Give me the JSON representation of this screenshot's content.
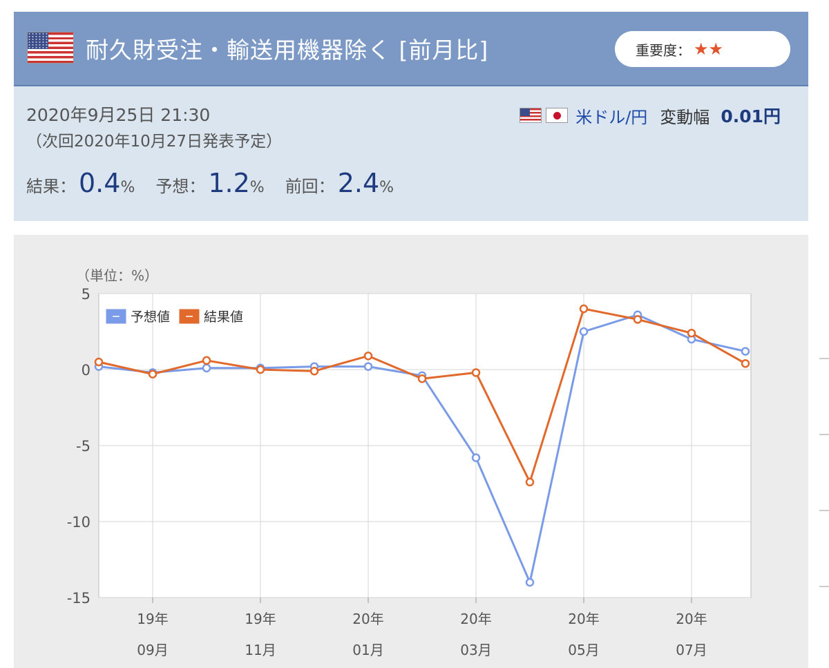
{
  "header": {
    "title": "耐久財受注・輸送用機器除く [前月比]",
    "importance_label": "重要度：",
    "importance_stars": "★★",
    "flag_icon": "us-flag-icon"
  },
  "release": {
    "datetime": "2020年9月25日 21:30",
    "next": "（次回2020年10月27日発表予定）",
    "pair_label": "米ドル/円",
    "range_label": "変動幅",
    "range_value": "0.01円"
  },
  "stats": {
    "result_label": "結果：",
    "result_value": "0.4",
    "forecast_label": "予想：",
    "forecast_value": "1.2",
    "previous_label": "前回：",
    "previous_value": "2.4",
    "unit": "%"
  },
  "colors": {
    "header_bg": "#7b99c4",
    "info_bg": "#dbe5ef",
    "forecast": "#7a9be8",
    "actual": "#e0692b",
    "accent": "#1f3b80"
  },
  "chart_data": {
    "type": "line",
    "unit_label": "（単位：%）",
    "ylim": [
      -15,
      5
    ],
    "yticks": [
      "5",
      "0",
      "-5",
      "-10",
      "-15"
    ],
    "ytick_values": [
      5,
      0,
      -5,
      -10,
      -15
    ],
    "x_tick_labels": [
      {
        "year": "19年",
        "month": "09月",
        "index": 1
      },
      {
        "year": "19年",
        "month": "11月",
        "index": 3
      },
      {
        "year": "20年",
        "month": "01月",
        "index": 5
      },
      {
        "year": "20年",
        "month": "03月",
        "index": 7
      },
      {
        "year": "20年",
        "month": "05月",
        "index": 9
      },
      {
        "year": "20年",
        "month": "07月",
        "index": 11
      }
    ],
    "categories": [
      "2019-08",
      "2019-09",
      "2019-10",
      "2019-11",
      "2019-12",
      "2020-01",
      "2020-02",
      "2020-03",
      "2020-04",
      "2020-05",
      "2020-06",
      "2020-07",
      "2020-08"
    ],
    "series": [
      {
        "name": "予想値",
        "color": "#7a9be8",
        "values": [
          0.2,
          -0.2,
          0.1,
          0.1,
          0.2,
          0.2,
          -0.4,
          -5.8,
          -14.0,
          2.5,
          3.6,
          2.0,
          1.2
        ]
      },
      {
        "name": "結果値",
        "color": "#e0692b",
        "values": [
          0.5,
          -0.3,
          0.6,
          0.0,
          -0.1,
          0.9,
          -0.6,
          -0.2,
          -7.4,
          4.0,
          3.3,
          2.4,
          0.4
        ]
      }
    ],
    "grid": true,
    "legend": "top-left"
  }
}
